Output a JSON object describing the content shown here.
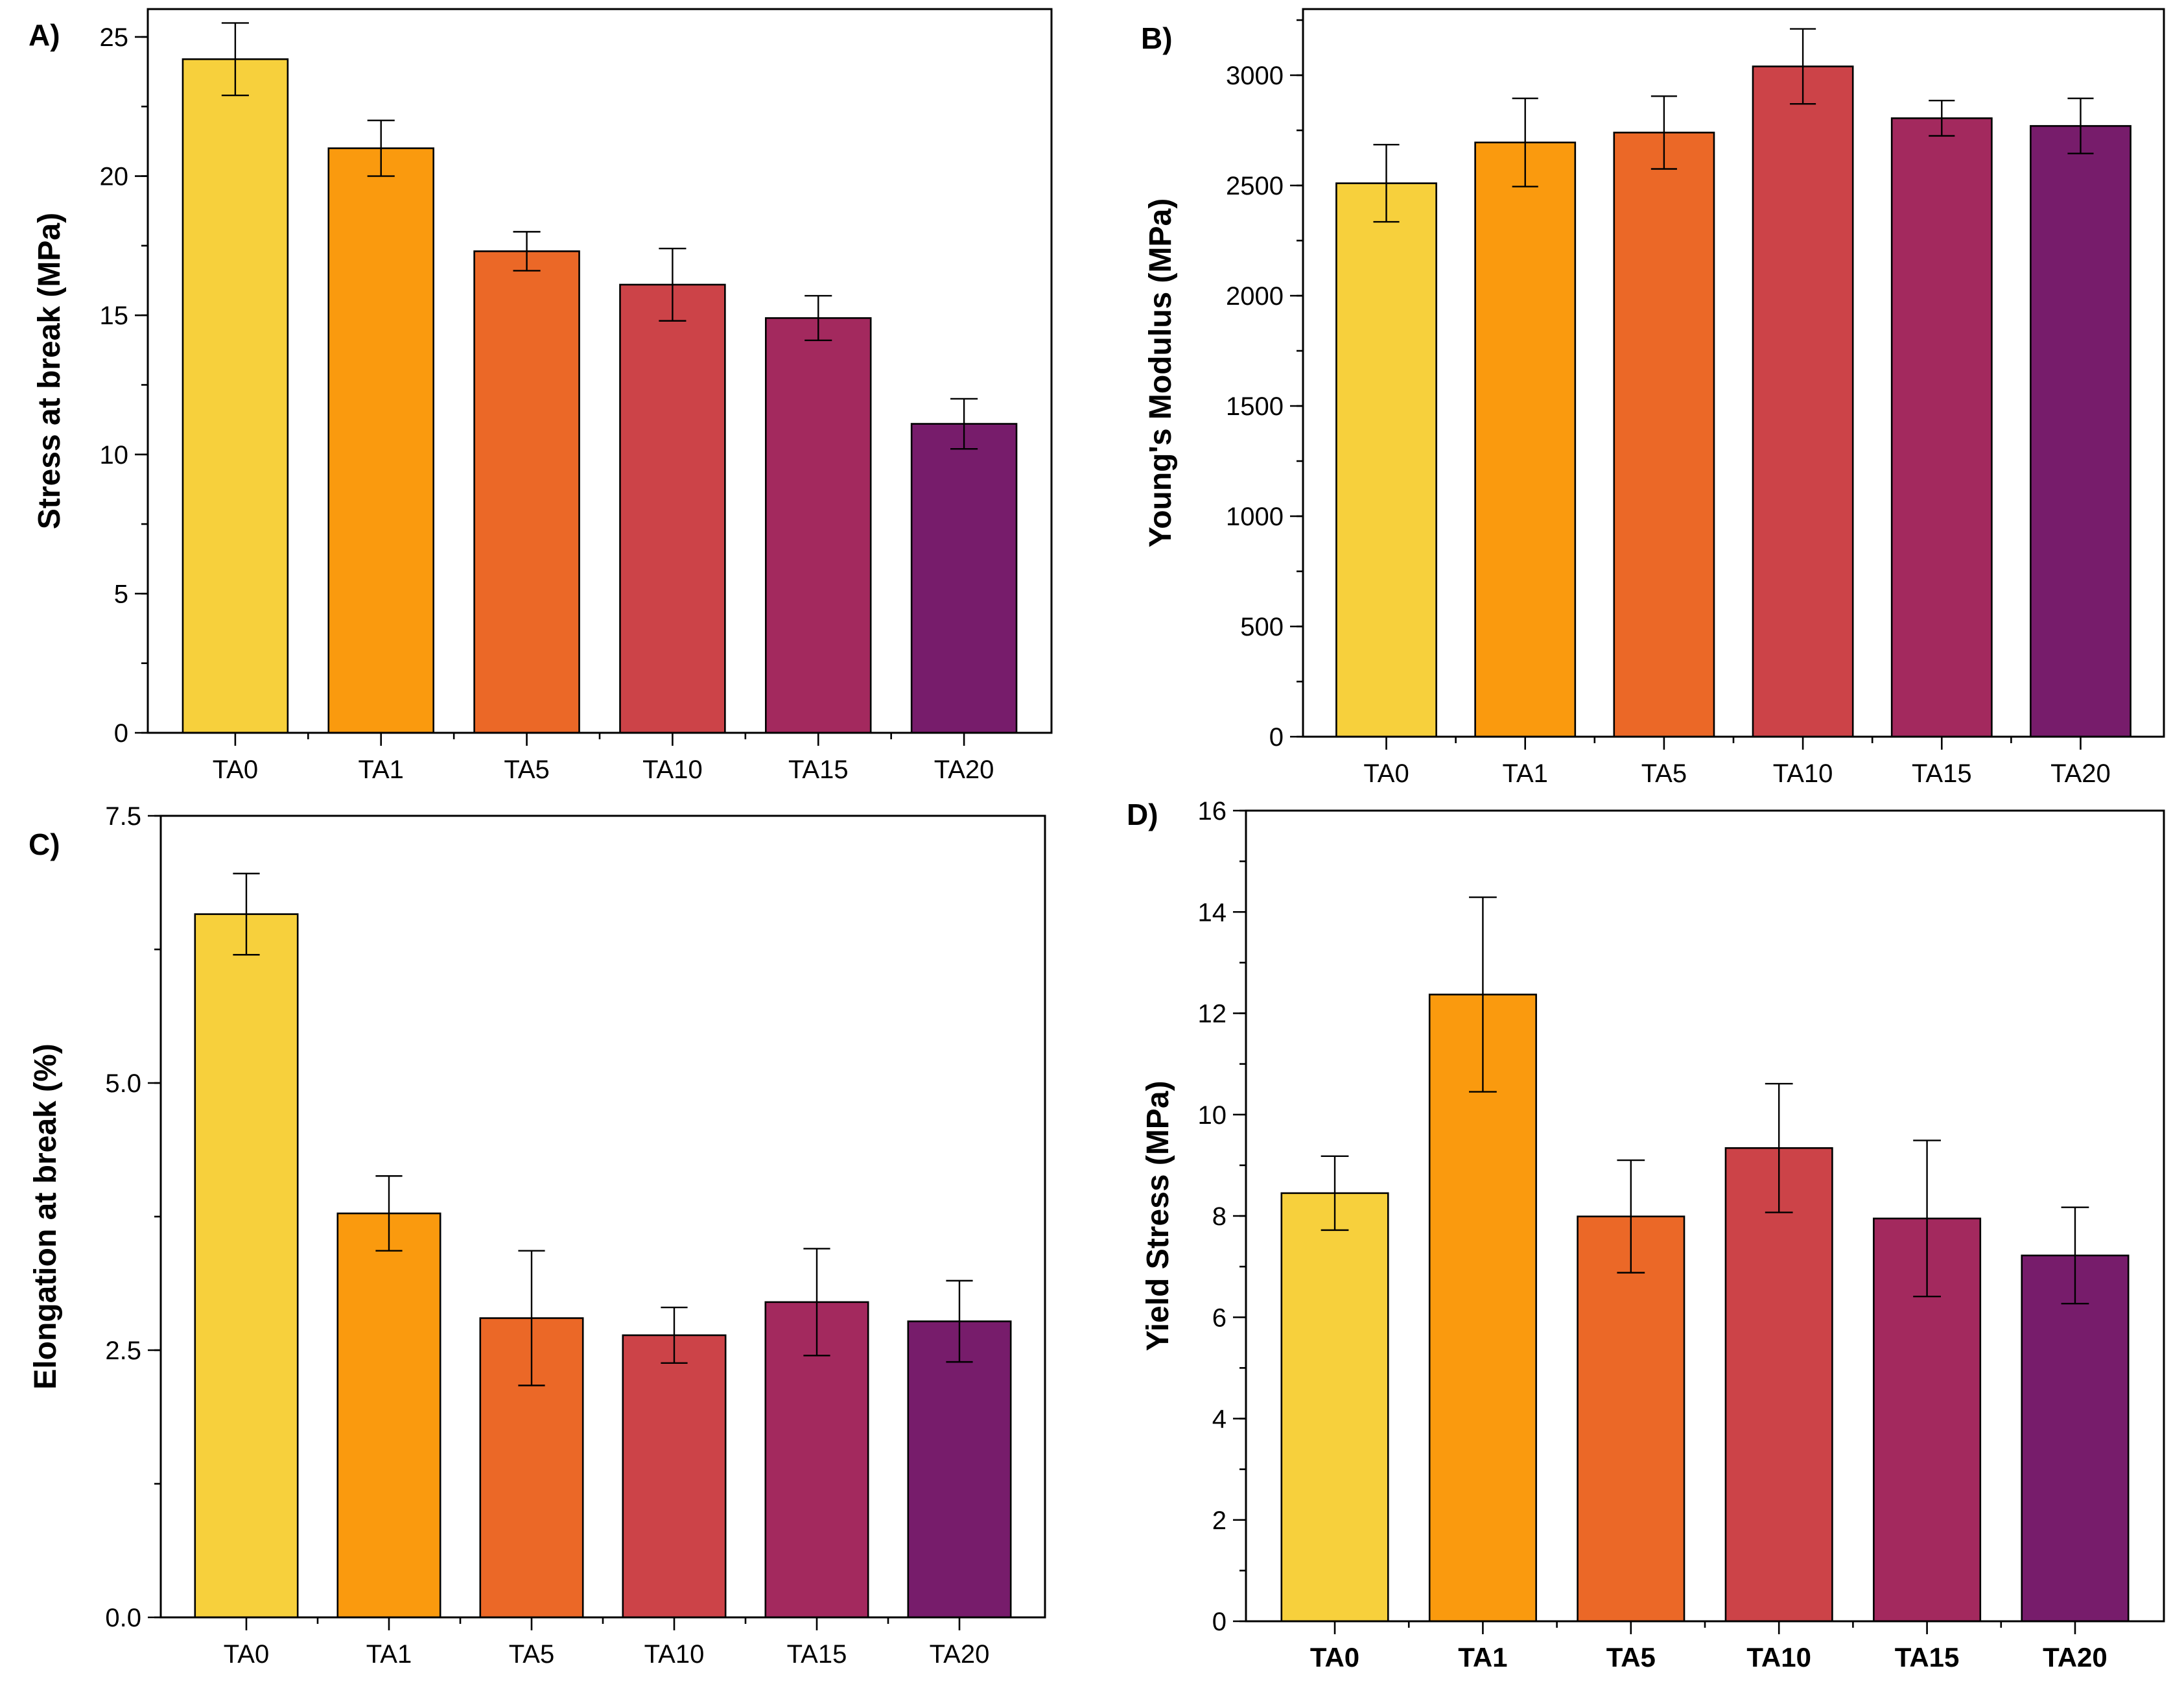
{
  "figure": {
    "palette": [
      "#F7D03C",
      "#FA9A0E",
      "#EB6827",
      "#CC4348",
      "#A3295E",
      "#771C6B"
    ]
  },
  "chart_data": [
    {
      "panel": "A)",
      "type": "bar",
      "ylabel": "Stress at break (MPa)",
      "xlabel": "",
      "categories": [
        "TA0",
        "TA1",
        "TA5",
        "TA10",
        "TA15",
        "TA20"
      ],
      "values": [
        24.2,
        21.0,
        17.3,
        16.1,
        14.9,
        11.1
      ],
      "errors": [
        1.3,
        1.0,
        0.7,
        1.3,
        0.8,
        0.9
      ],
      "ylim": [
        0,
        26
      ],
      "yticks": [
        0,
        5,
        10,
        15,
        20,
        25
      ],
      "ytick_labels": [
        "0",
        "5",
        "10",
        "15",
        "20",
        "25"
      ],
      "minor_step": 2.5,
      "bold_xticks": false
    },
    {
      "panel": "B)",
      "type": "bar",
      "ylabel": "Young's Modulus (MPa)",
      "xlabel": "",
      "categories": [
        "TA0",
        "TA1",
        "TA5",
        "TA10",
        "TA15",
        "TA20"
      ],
      "values": [
        2510,
        2695,
        2740,
        3040,
        2805,
        2770
      ],
      "errors": [
        175,
        200,
        165,
        170,
        80,
        125
      ],
      "ylim": [
        0,
        3300
      ],
      "yticks": [
        0,
        500,
        1000,
        1500,
        2000,
        2500,
        3000
      ],
      "ytick_labels": [
        "0",
        "500",
        "1000",
        "1500",
        "2000",
        "2500",
        "3000"
      ],
      "minor_step": 250,
      "bold_xticks": false
    },
    {
      "panel": "C)",
      "type": "bar",
      "ylabel": "Elongation at break (%)",
      "xlabel": "",
      "categories": [
        "TA0",
        "TA1",
        "TA5",
        "TA10",
        "TA15",
        "TA20"
      ],
      "values": [
        6.58,
        3.78,
        2.8,
        2.64,
        2.95,
        2.77
      ],
      "errors": [
        0.38,
        0.35,
        0.63,
        0.26,
        0.5,
        0.38
      ],
      "ylim": [
        0,
        7.5
      ],
      "yticks": [
        0,
        2.5,
        5,
        7.5
      ],
      "ytick_labels": [
        "0.0",
        "2.5",
        "5.0",
        "7.5"
      ],
      "minor_step": 1.25,
      "bold_xticks": false
    },
    {
      "panel": "D)",
      "type": "bar",
      "ylabel": "Yield Stress (MPa)",
      "xlabel": "",
      "categories": [
        "TA0",
        "TA1",
        "TA5",
        "TA10",
        "TA15",
        "TA20"
      ],
      "values": [
        8.45,
        12.37,
        7.99,
        9.34,
        7.95,
        7.22
      ],
      "errors": [
        0.73,
        1.92,
        1.11,
        1.27,
        1.54,
        0.95
      ],
      "ylim": [
        0,
        16
      ],
      "yticks": [
        0,
        2,
        4,
        6,
        8,
        10,
        12,
        14,
        16
      ],
      "ytick_labels": [
        "0",
        "2",
        "4",
        "6",
        "8",
        "10",
        "12",
        "14",
        "16"
      ],
      "minor_step": 1,
      "bold_xticks": true
    }
  ]
}
